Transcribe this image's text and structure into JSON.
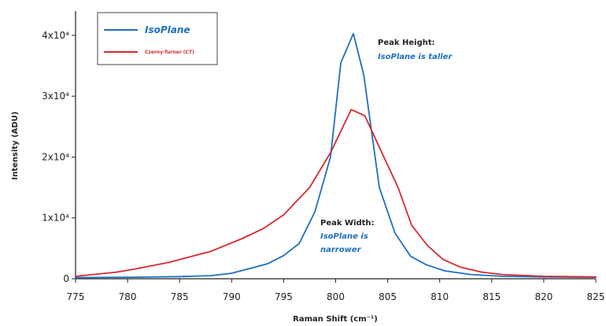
{
  "chart_data": {
    "type": "line",
    "title": "",
    "xlabel": "Raman Shift (cm⁻¹)",
    "ylabel": "Intensity (ADU)",
    "xlim": [
      775,
      825
    ],
    "ylim": [
      0,
      44000
    ],
    "x_ticks": [
      "775",
      "780",
      "785",
      "790",
      "795",
      "800",
      "805",
      "810",
      "815",
      "820",
      "825"
    ],
    "y_ticks": [
      {
        "value": 0,
        "label": "0"
      },
      {
        "value": 10000,
        "label": "1x10⁴"
      },
      {
        "value": 20000,
        "label": "2x10⁴"
      },
      {
        "value": 30000,
        "label": "3x10⁴"
      },
      {
        "value": 40000,
        "label": "4x10⁴"
      }
    ],
    "legend": {
      "placement": "top-left"
    },
    "series": [
      {
        "name": "IsoPlane",
        "color": "#1f6fc0",
        "points": [
          [
            775,
            200
          ],
          [
            780,
            250
          ],
          [
            785,
            350
          ],
          [
            788,
            500
          ],
          [
            790,
            900
          ],
          [
            792,
            1800
          ],
          [
            793.5,
            2500
          ],
          [
            795,
            3800
          ],
          [
            796.5,
            5800
          ],
          [
            798,
            11000
          ],
          [
            799.5,
            20000
          ],
          [
            800.5,
            35500
          ],
          [
            801.7,
            40300
          ],
          [
            802.7,
            33500
          ],
          [
            804.2,
            15000
          ],
          [
            805.7,
            7500
          ],
          [
            807.2,
            3700
          ],
          [
            808.7,
            2300
          ],
          [
            810.5,
            1300
          ],
          [
            813,
            700
          ],
          [
            816,
            400
          ],
          [
            820,
            300
          ],
          [
            825,
            250
          ]
        ]
      },
      {
        "name": "Czerny-Turner (CT)",
        "color": "#d42a2f",
        "points": [
          [
            775,
            400
          ],
          [
            779,
            1100
          ],
          [
            781,
            1700
          ],
          [
            784,
            2700
          ],
          [
            788,
            4500
          ],
          [
            791,
            6600
          ],
          [
            793,
            8200
          ],
          [
            795,
            10500
          ],
          [
            797.5,
            15000
          ],
          [
            799.5,
            20700
          ],
          [
            801.5,
            27800
          ],
          [
            802.8,
            26800
          ],
          [
            804.5,
            20500
          ],
          [
            806,
            15000
          ],
          [
            807.3,
            8800
          ],
          [
            808.8,
            5500
          ],
          [
            810.3,
            3200
          ],
          [
            812,
            1900
          ],
          [
            814,
            1100
          ],
          [
            816,
            700
          ],
          [
            820,
            400
          ],
          [
            825,
            300
          ]
        ]
      }
    ],
    "annotations": [
      {
        "id": "peak_height",
        "heading": "Peak Height:",
        "lines": [
          "IsoPlane is taller"
        ],
        "color": "#1f6fc0"
      },
      {
        "id": "peak_width",
        "heading": "Peak Width:",
        "lines": [
          "IsoPlane is",
          "narrower"
        ],
        "color": "#1f6fc0"
      }
    ]
  }
}
